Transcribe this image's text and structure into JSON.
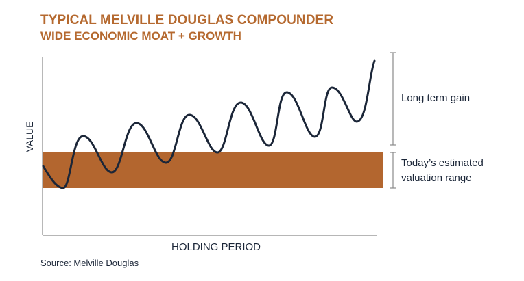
{
  "header": {
    "title": "TYPICAL MELVILLE DOUGLAS COMPOUNDER",
    "subtitle": "WIDE ECONOMIC MOAT + GROWTH"
  },
  "axes": {
    "y_label": "VALUE",
    "x_label": "HOLDING PERIOD"
  },
  "annotations": {
    "long_term_gain": "Long term gain",
    "valuation_range_line1": "Today’s estimated",
    "valuation_range_line2": "valuation range"
  },
  "footer": {
    "source": "Source: Melville Douglas"
  },
  "colors": {
    "accent": "#b5692f",
    "band": "#b3662f",
    "line": "#1b2638",
    "axis": "#8a8a8a"
  }
}
